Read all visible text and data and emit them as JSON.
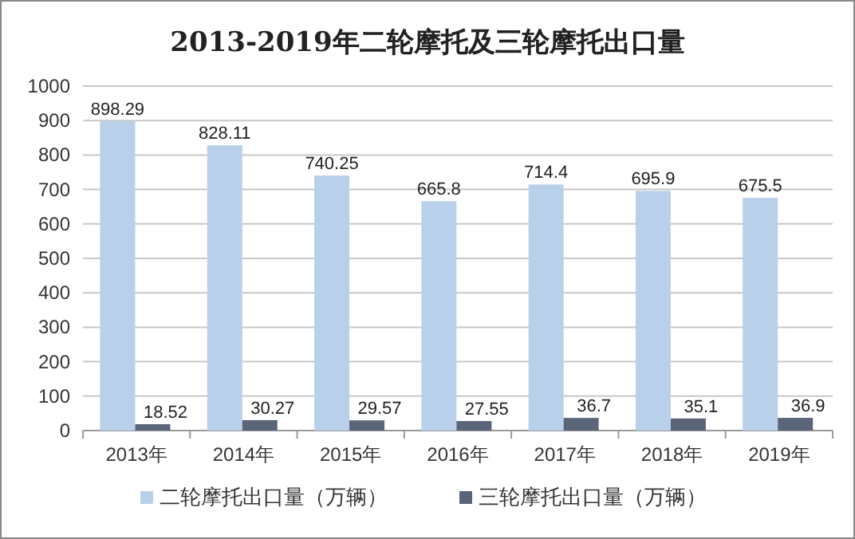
{
  "chart_data": {
    "type": "bar",
    "title": "2013-2019年二轮摩托及三轮摩托出口量",
    "categories": [
      "2013年",
      "2014年",
      "2015年",
      "2016年",
      "2017年",
      "2018年",
      "2019年"
    ],
    "series": [
      {
        "name": "二轮摩托出口量（万辆）",
        "color": "#b9d0eb",
        "values": [
          898.29,
          828.11,
          740.25,
          665.8,
          714.4,
          695.9,
          675.5
        ]
      },
      {
        "name": "三轮摩托出口量（万辆）",
        "color": "#5b6579",
        "values": [
          18.52,
          30.27,
          29.57,
          27.55,
          36.7,
          35.1,
          36.9
        ]
      }
    ],
    "ylim": [
      0,
      1000
    ],
    "yticks": [
      0,
      100,
      200,
      300,
      400,
      500,
      600,
      700,
      800,
      900,
      1000
    ],
    "grid": "y",
    "legend": "bottom",
    "data_labels": true
  }
}
